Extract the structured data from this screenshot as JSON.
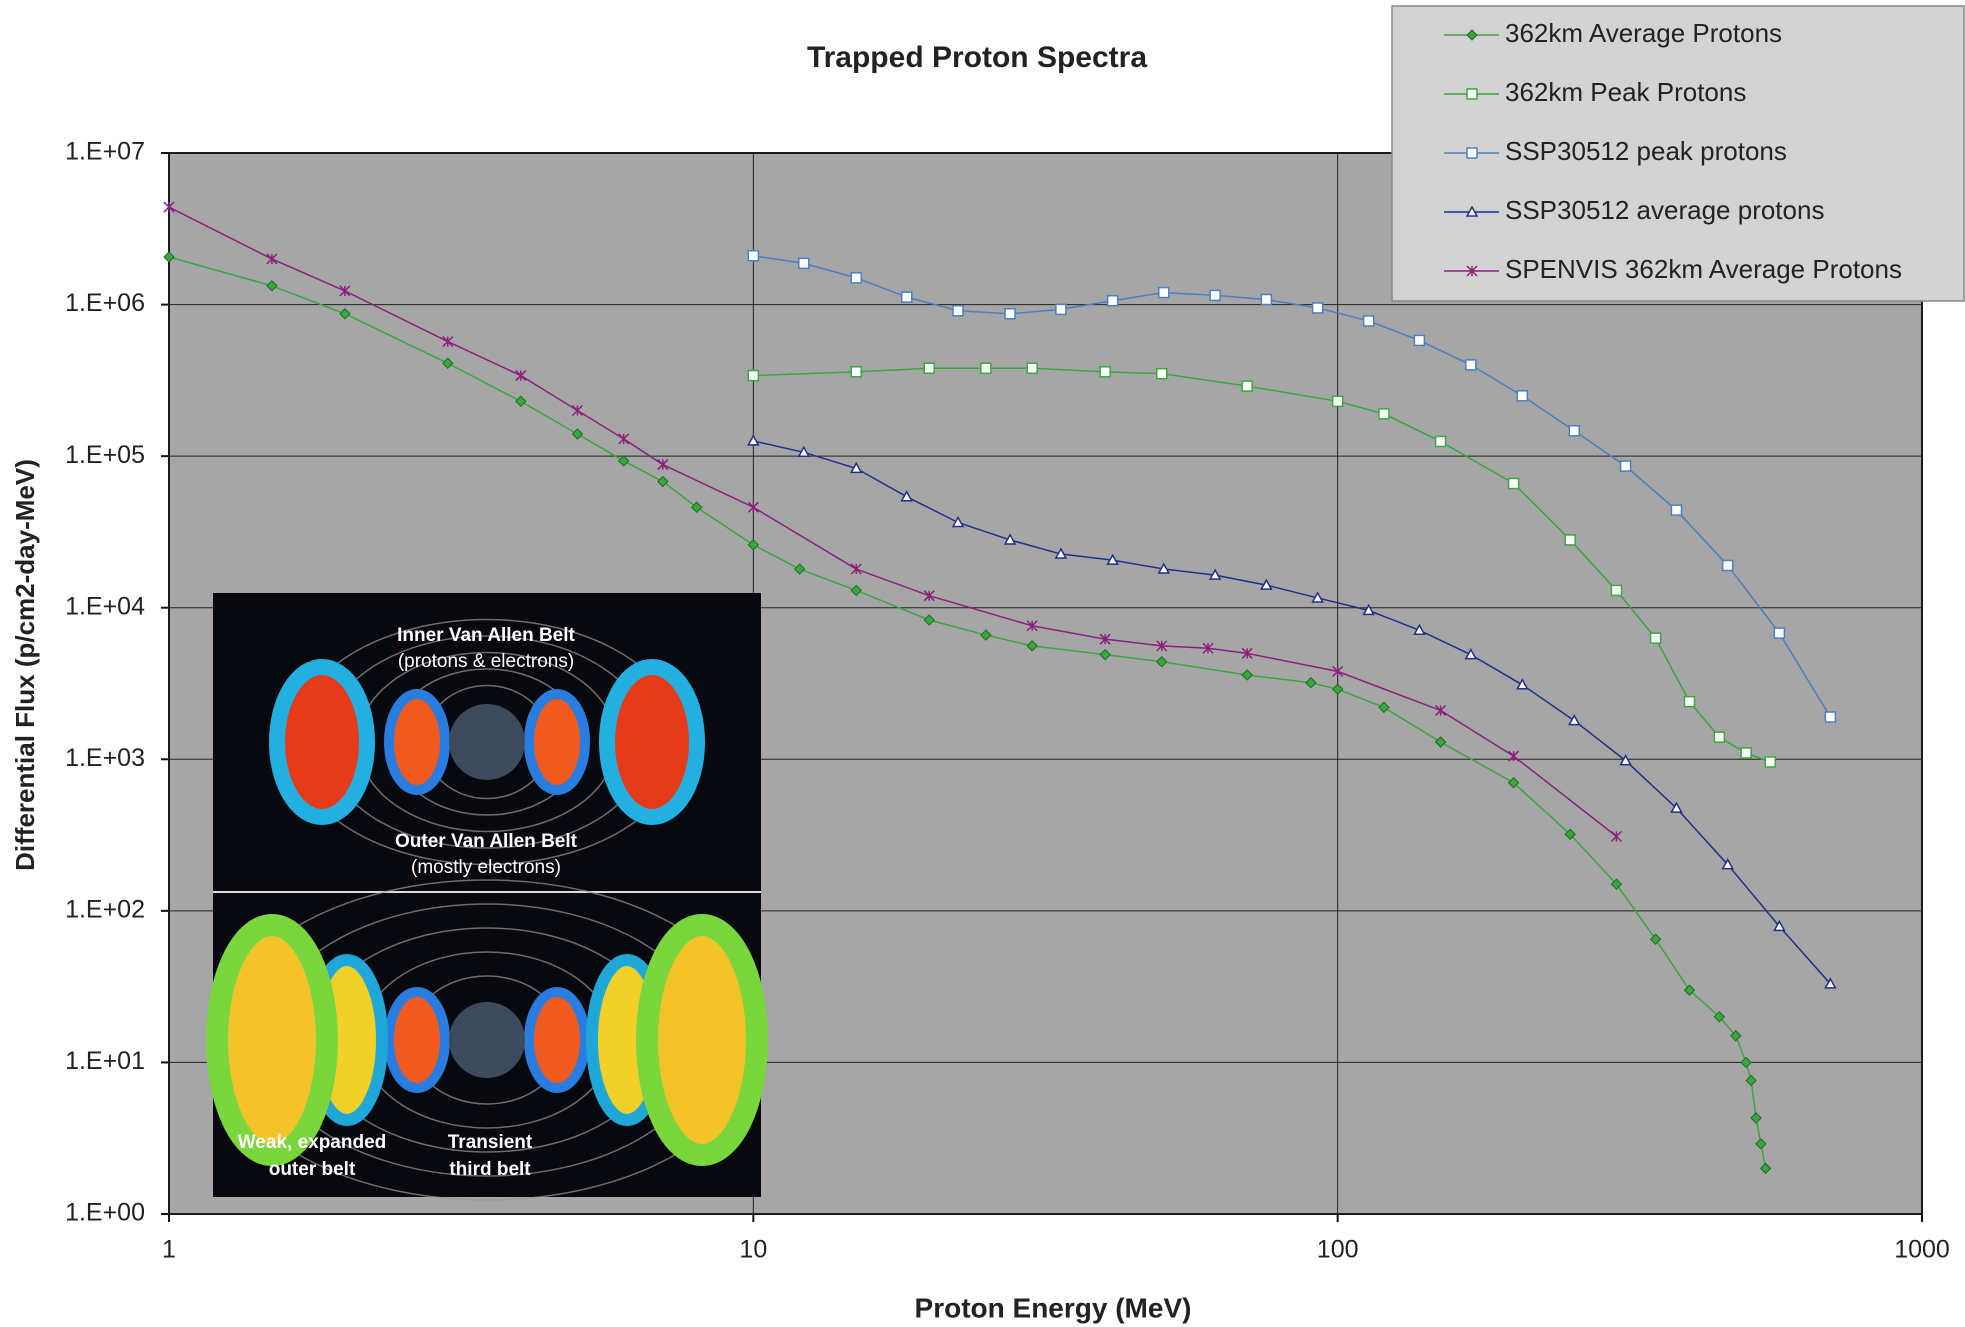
{
  "chart_data": {
    "type": "line",
    "title": "Trapped Proton Spectra",
    "x_label": "Proton Energy (MeV)",
    "y_label": "Differential Flux (p/cm2-day-MeV)",
    "x_log": true,
    "y_log": true,
    "grid": true,
    "legend": "top-right",
    "xlim": [
      1,
      1000
    ],
    "xticks": [
      1,
      10,
      100,
      1000
    ],
    "ylim": [
      1,
      10000000
    ],
    "yticks": [
      {
        "value": 1,
        "label": "1.E+00"
      },
      {
        "value": 10,
        "label": "1.E+01"
      },
      {
        "value": 100,
        "label": "1.E+02"
      },
      {
        "value": 1000,
        "label": "1.E+03"
      },
      {
        "value": 10000,
        "label": "1.E+04"
      },
      {
        "value": 100000,
        "label": "1.E+05"
      },
      {
        "value": 1000000,
        "label": "1.E+06"
      },
      {
        "value": 10000000,
        "label": "1.E+07"
      }
    ],
    "series": [
      {
        "name": "362km Average Protons",
        "color": "#3aa63f",
        "marker": "diamond",
        "x": [
          1,
          1.5,
          2,
          3,
          4,
          5,
          6,
          7,
          8,
          10,
          12,
          15,
          20,
          25,
          30,
          40,
          50,
          70,
          90,
          100,
          120,
          150,
          200,
          250,
          300,
          350,
          400,
          450,
          480,
          500,
          510,
          520,
          530,
          540
        ],
        "values": [
          2060000,
          1330000,
          870000,
          410000,
          230000,
          140000,
          93000,
          68000,
          46000,
          26000,
          18000,
          13000,
          8300,
          6600,
          5600,
          4900,
          4400,
          3600,
          3200,
          2900,
          2200,
          1300,
          700,
          320,
          150,
          65,
          30,
          20,
          15,
          10,
          7.6,
          4.3,
          2.9,
          2.0
        ]
      },
      {
        "name": "362km Peak Protons",
        "color": "#3aa63f",
        "marker": "square",
        "x": [
          10,
          15,
          20,
          25,
          30,
          40,
          50,
          70,
          100,
          120,
          150,
          200,
          250,
          300,
          350,
          400,
          450,
          500,
          550
        ],
        "values": [
          340000,
          360000,
          380000,
          380000,
          380000,
          360000,
          350000,
          290000,
          230000,
          190000,
          125000,
          66000,
          28000,
          13000,
          6300,
          2400,
          1400,
          1100,
          960
        ]
      },
      {
        "name": "SSP30512 peak protons",
        "color": "#4a7fc1",
        "marker": "square",
        "x": [
          10,
          12.2,
          15,
          18.3,
          22.4,
          27.5,
          33.6,
          41.2,
          50.4,
          61.7,
          75.5,
          92.4,
          113,
          138,
          169,
          207,
          254,
          311,
          380,
          465,
          570,
          697
        ],
        "values": [
          2100000,
          1870000,
          1500000,
          1120000,
          910000,
          870000,
          930000,
          1060000,
          1200000,
          1150000,
          1080000,
          950000,
          780000,
          580000,
          400000,
          250000,
          147000,
          86000,
          44000,
          19000,
          6800,
          1900
        ]
      },
      {
        "name": "SSP30512 average protons",
        "color": "#1f2f8a",
        "marker": "triangle",
        "x": [
          10,
          12.2,
          15,
          18.3,
          22.4,
          27.5,
          33.6,
          41.2,
          50.4,
          61.7,
          75.5,
          92.4,
          113,
          138,
          169,
          207,
          254,
          311,
          380,
          465,
          570,
          697
        ],
        "values": [
          126000,
          106000,
          83000,
          54000,
          36500,
          28000,
          22600,
          20600,
          18000,
          16400,
          14100,
          11600,
          9600,
          7100,
          4900,
          3100,
          1800,
          980,
          476,
          202,
          79,
          33
        ]
      },
      {
        "name": "SPENVIS 362km Average Protons",
        "color": "#8b1f7c",
        "marker": "star",
        "x": [
          1,
          1.5,
          2,
          3,
          4,
          5,
          6,
          7,
          10,
          15,
          20,
          30,
          40,
          50,
          60,
          70,
          100,
          150,
          200,
          300
        ],
        "values": [
          4400000,
          2000000,
          1230000,
          570000,
          340000,
          200000,
          130000,
          88000,
          46000,
          18000,
          12000,
          7600,
          6200,
          5600,
          5400,
          5000,
          3800,
          2100,
          1050,
          310
        ]
      }
    ]
  },
  "inset": {
    "labels": [
      "Inner Van Allen Belt",
      "(protons & electrons)",
      "Outer Van Allen Belt",
      "(mostly electrons)",
      "Weak, expanded",
      "outer belt",
      "Transient",
      "third belt"
    ]
  }
}
